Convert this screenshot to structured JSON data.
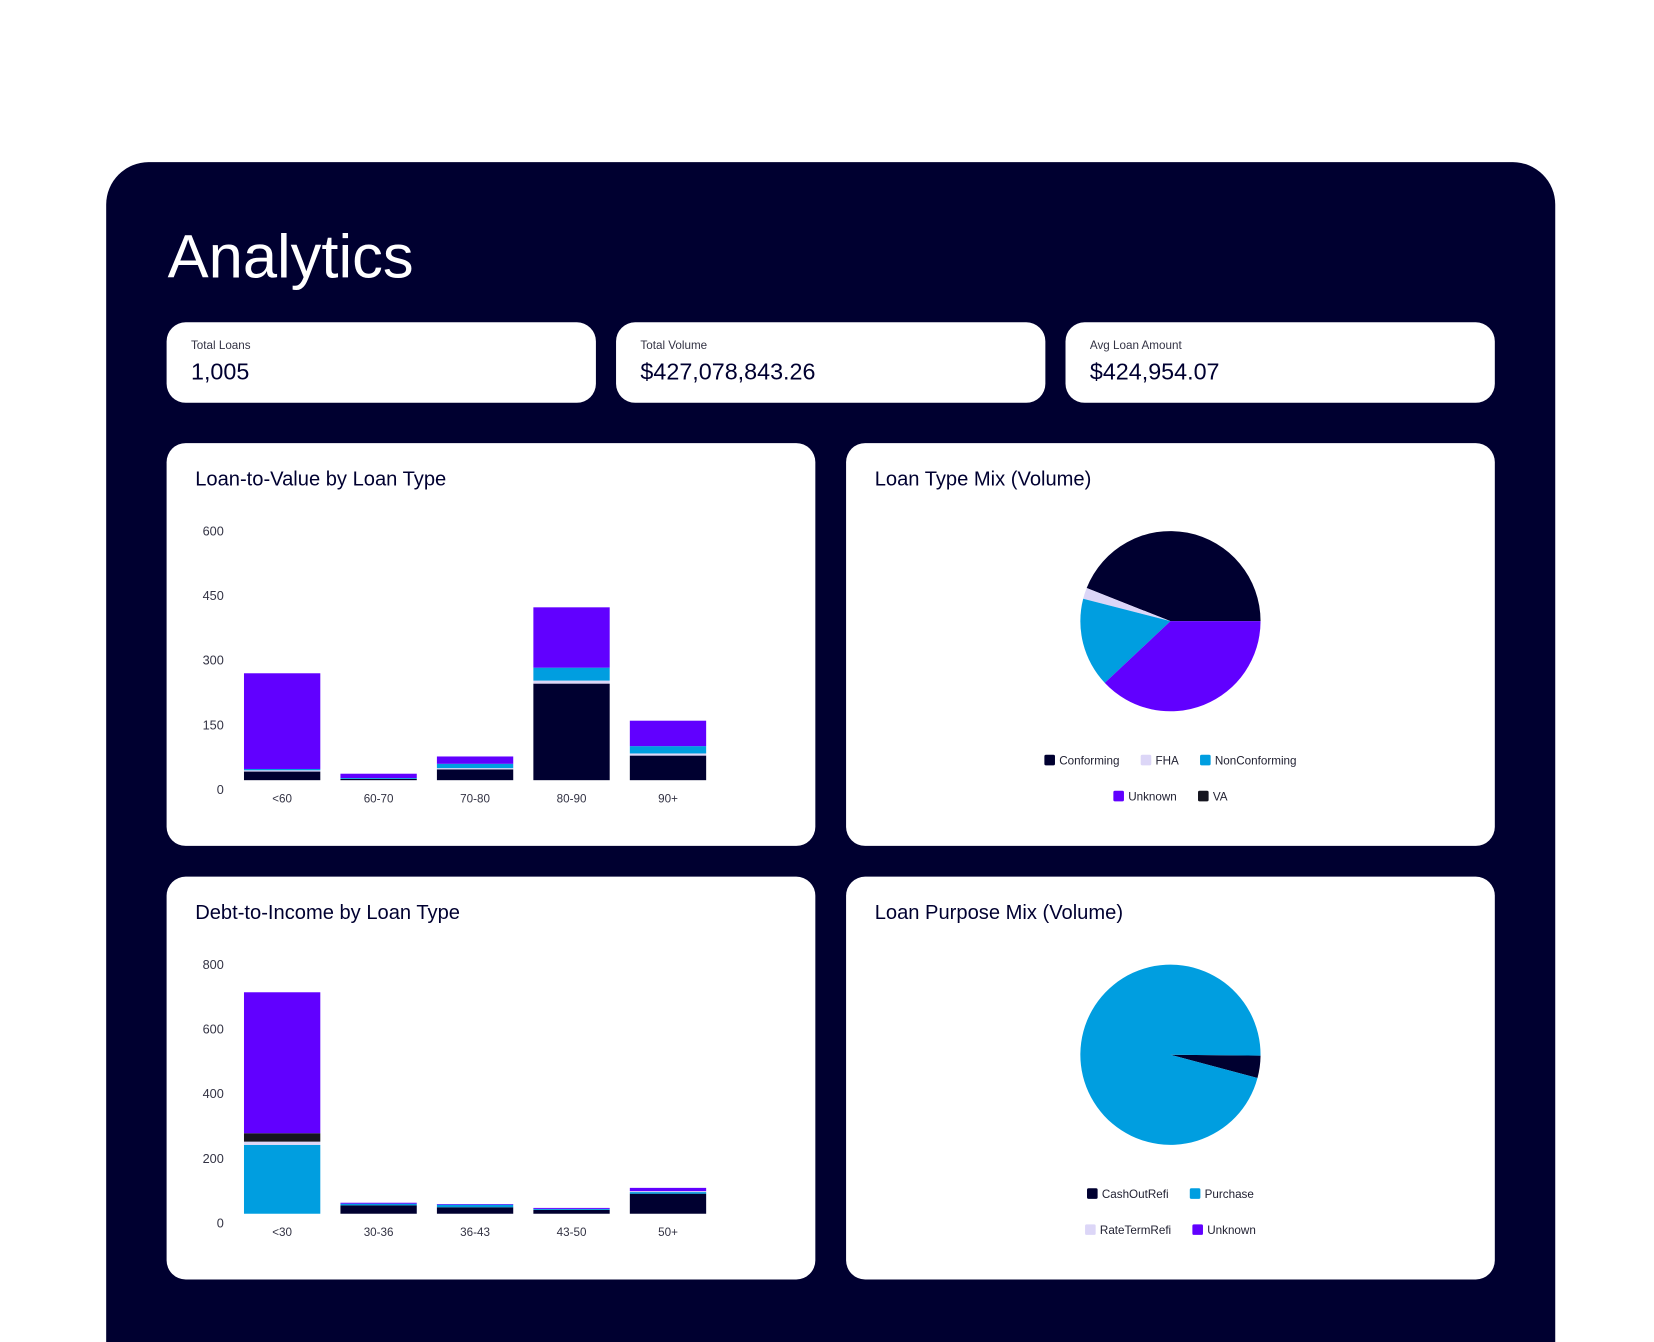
{
  "header": {
    "title": "Analytics"
  },
  "stats": [
    {
      "label": "Total Loans",
      "value": "1,005"
    },
    {
      "label": "Total Volume",
      "value": "$427,078,843.26"
    },
    {
      "label": "Avg Loan Amount",
      "value": "$424,954.07"
    }
  ],
  "chart_data": [
    {
      "type": "bar",
      "title": "Loan-to-Value by Loan Type",
      "stacked": true,
      "categories": [
        "<60",
        "60-70",
        "70-80",
        "80-90",
        "90+"
      ],
      "series": [
        {
          "color": "#000030",
          "values": [
            20,
            3,
            25,
            224,
            57
          ]
        },
        {
          "color": "#dcd6f7",
          "values": [
            3,
            0,
            3,
            7,
            5
          ]
        },
        {
          "color": "#009ee0",
          "values": [
            3,
            2,
            10,
            30,
            17
          ]
        },
        {
          "color": "#6100ff",
          "values": [
            222,
            10,
            17,
            140,
            59
          ]
        }
      ],
      "ylim": [
        0,
        600
      ],
      "yticks": [
        0,
        150,
        300,
        450,
        600
      ]
    },
    {
      "type": "pie",
      "title": "Loan Type Mix (Volume)",
      "categories": [
        "Conforming",
        "FHA",
        "NonConforming",
        "Unknown",
        "VA"
      ],
      "values": [
        44,
        2,
        16,
        38,
        0
      ],
      "colors": [
        "#000030",
        "#dcd6f7",
        "#009ee0",
        "#6100ff",
        "#15151f"
      ]
    },
    {
      "type": "bar",
      "title": "Debt-to-Income by Loan Type",
      "stacked": true,
      "categories": [
        "<30",
        "30-36",
        "36-43",
        "43-50",
        "50+"
      ],
      "series": [
        {
          "color": "#000030",
          "values": [
            0,
            26,
            20,
            12,
            62
          ]
        },
        {
          "color": "#009ee0",
          "values": [
            213,
            5,
            8,
            3,
            5
          ]
        },
        {
          "color": "#dcd6f7",
          "values": [
            10,
            0,
            0,
            0,
            3
          ]
        },
        {
          "color": "#15151f",
          "values": [
            26,
            0,
            0,
            0,
            0
          ]
        },
        {
          "color": "#6100ff",
          "values": [
            436,
            3,
            2,
            3,
            10
          ]
        }
      ],
      "ylim": [
        0,
        800
      ],
      "yticks": [
        0,
        200,
        400,
        600,
        800
      ]
    },
    {
      "type": "pie",
      "title": "Loan Purpose Mix (Volume)",
      "categories": [
        "CashOutRefi",
        "Purchase",
        "RateTermRefi",
        "Unknown"
      ],
      "values": [
        4,
        96,
        0,
        0
      ],
      "colors": [
        "#000030",
        "#009ee0",
        "#dcd6f7",
        "#6100ff"
      ]
    }
  ]
}
